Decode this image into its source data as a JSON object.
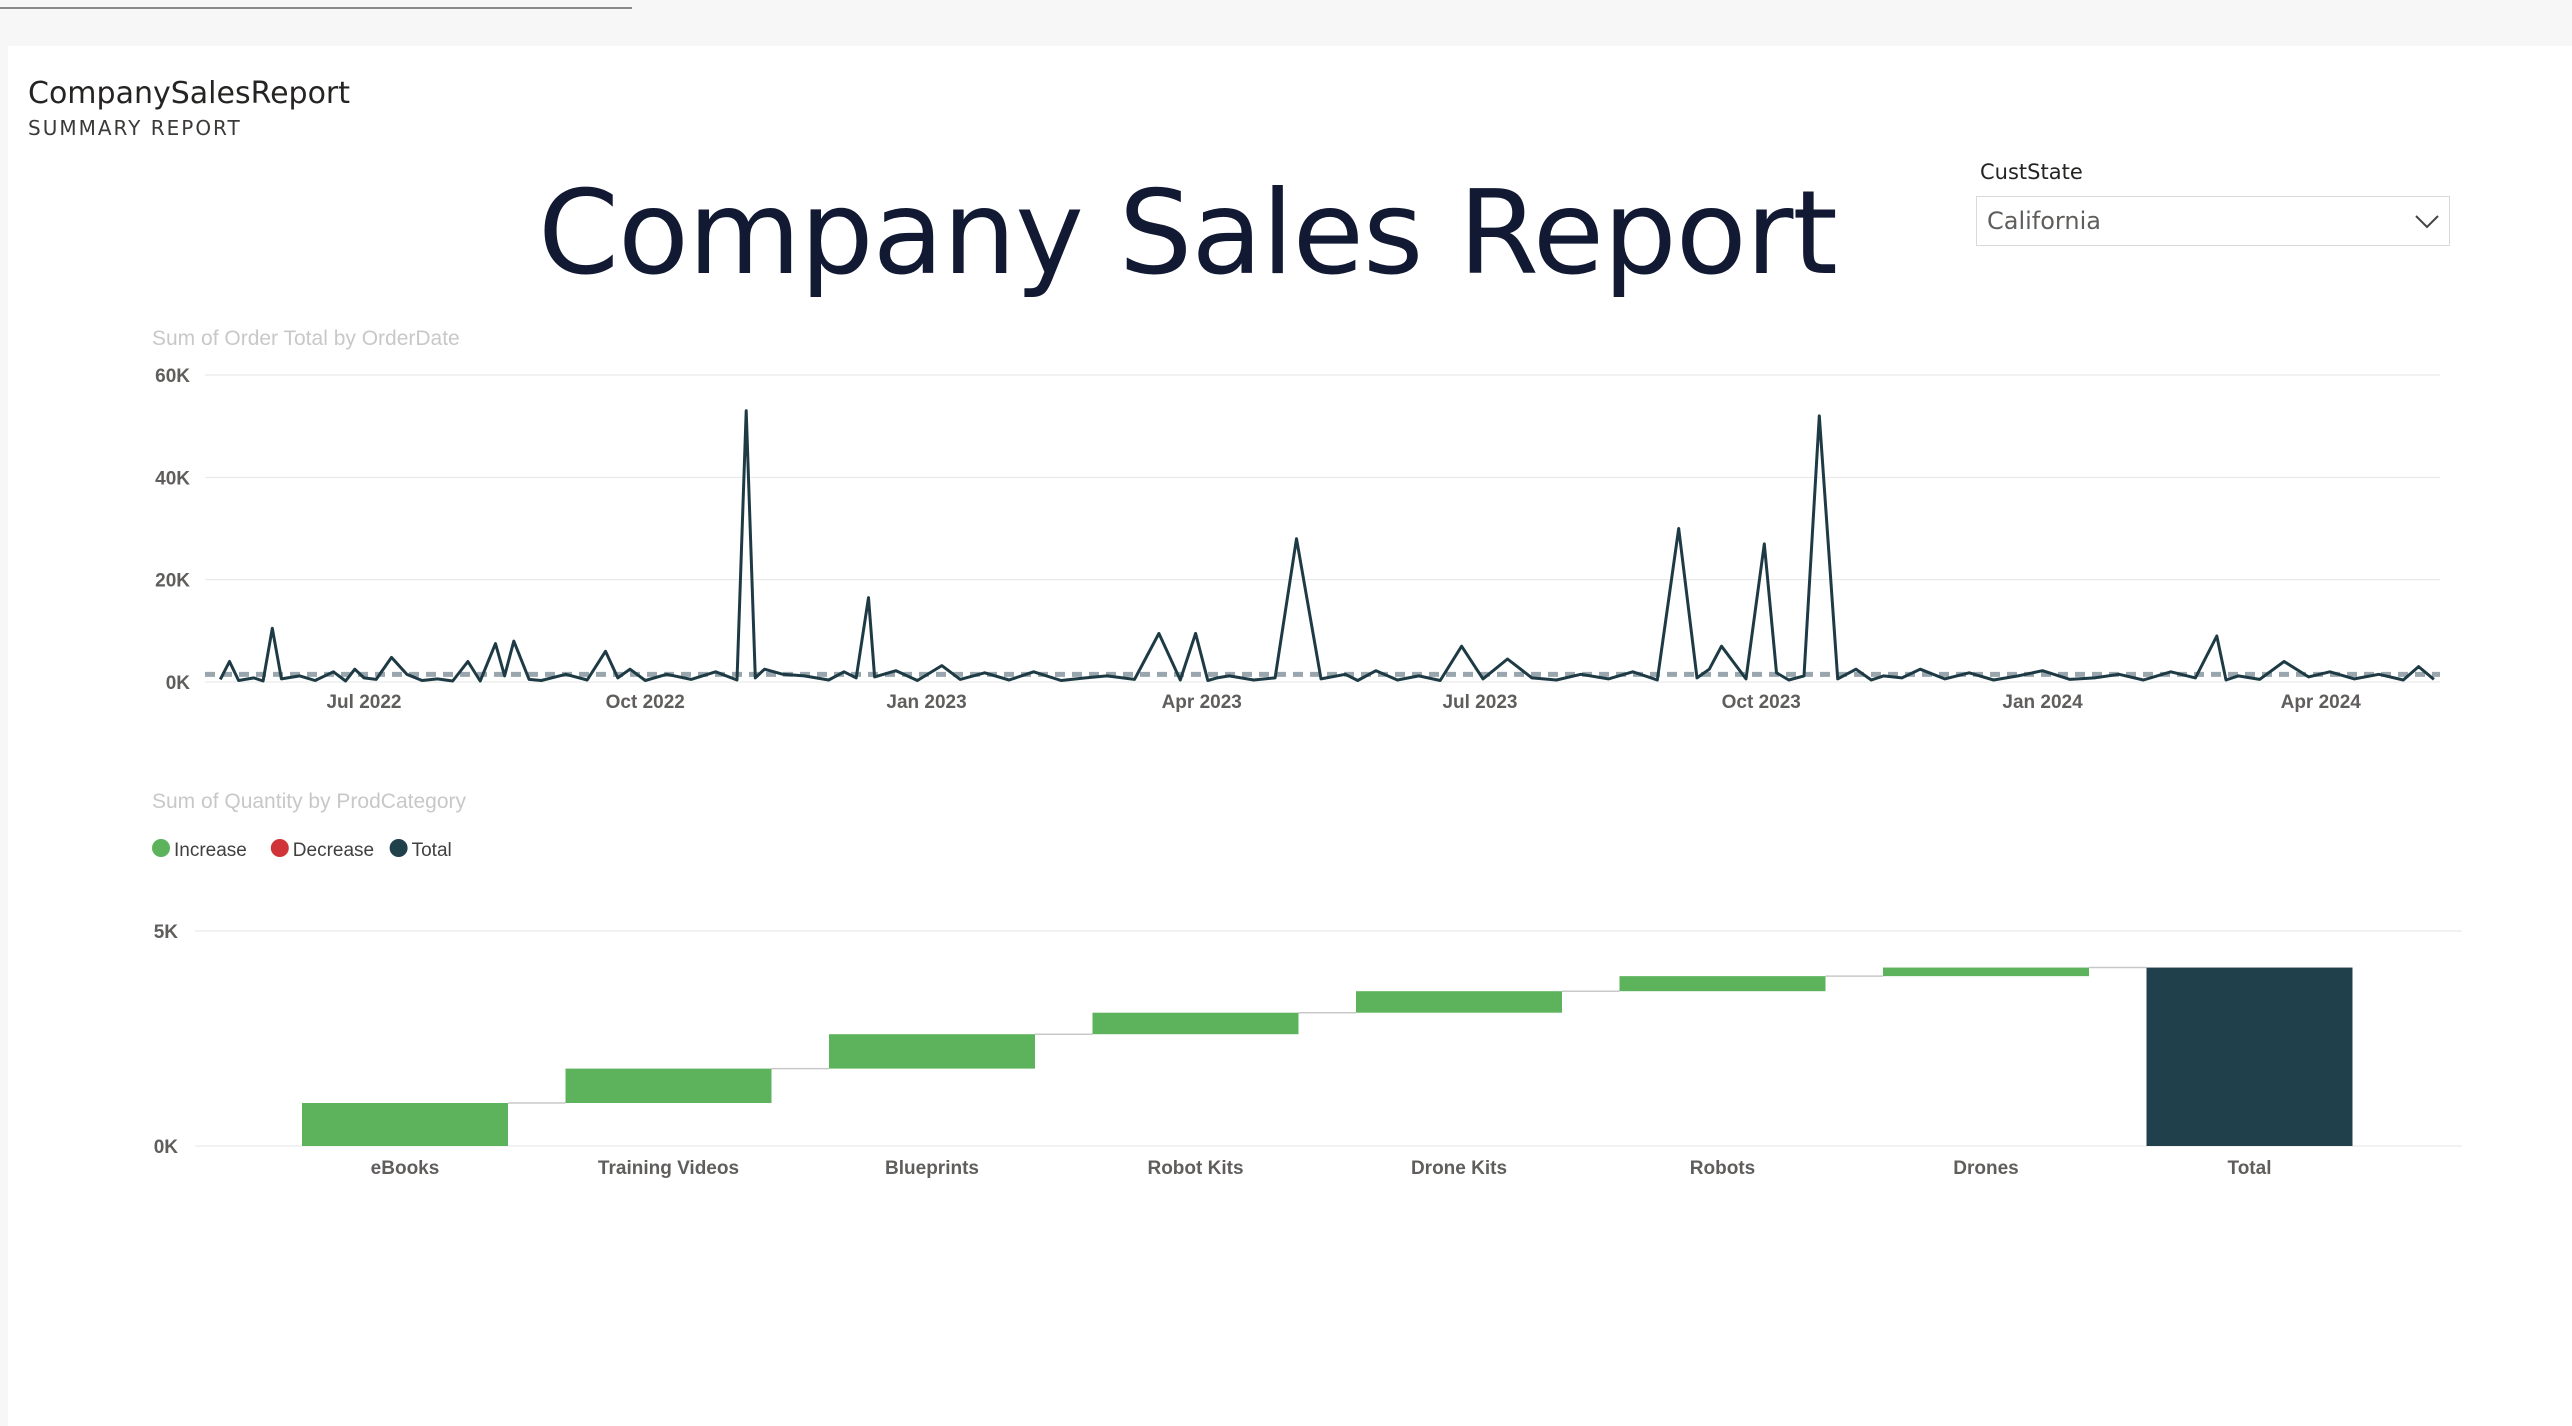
{
  "report": {
    "name": "CompanySalesReport",
    "subtitle": "SUMMARY REPORT",
    "title": "Company Sales Report"
  },
  "slicer": {
    "label": "CustState",
    "value": "California",
    "icon": "chevron-down-icon"
  },
  "colors": {
    "line": "#1e3b45",
    "avg_line": "#9aa6ad",
    "increase": "#5cb35c",
    "decrease": "#d13438",
    "total": "#20404c",
    "grid": "#e6e6e6",
    "title_text": "#121a33"
  },
  "chart_data": [
    {
      "type": "line",
      "title": "Sum of Order Total by OrderDate",
      "xlabel": "",
      "ylabel": "",
      "ylim": [
        0,
        60000
      ],
      "y_ticks": [
        "0K",
        "20K",
        "40K",
        "60K"
      ],
      "x_tick_labels": [
        "Jul 2022",
        "Oct 2022",
        "Jan 2023",
        "Apr 2023",
        "Jul 2023",
        "Oct 2023",
        "Jan 2024",
        "Apr 2024"
      ],
      "x_tick_dates": [
        "2022-07-01",
        "2022-10-01",
        "2023-01-01",
        "2023-04-01",
        "2023-07-01",
        "2023-10-01",
        "2024-01-01",
        "2024-04-01"
      ],
      "x_range": [
        "2022-05-10",
        "2024-05-10"
      ],
      "average_line": 1500,
      "grid": true,
      "series": [
        {
          "x": [
            "2022-05-15",
            "2022-05-18",
            "2022-05-21",
            "2022-05-26",
            "2022-05-29",
            "2022-06-01",
            "2022-06-04",
            "2022-06-10",
            "2022-06-15",
            "2022-06-21",
            "2022-06-25",
            "2022-06-28",
            "2022-07-01",
            "2022-07-05",
            "2022-07-10",
            "2022-07-15",
            "2022-07-20",
            "2022-07-25",
            "2022-07-30",
            "2022-08-04",
            "2022-08-08",
            "2022-08-13",
            "2022-08-16",
            "2022-08-19",
            "2022-08-24",
            "2022-08-28",
            "2022-09-05",
            "2022-09-12",
            "2022-09-18",
            "2022-09-22",
            "2022-09-26",
            "2022-10-01",
            "2022-10-08",
            "2022-10-16",
            "2022-10-24",
            "2022-10-31",
            "2022-11-03",
            "2022-11-06",
            "2022-11-09",
            "2022-11-15",
            "2022-11-22",
            "2022-11-30",
            "2022-12-05",
            "2022-12-09",
            "2022-12-13",
            "2022-12-15",
            "2022-12-22",
            "2022-12-29",
            "2023-01-06",
            "2023-01-12",
            "2023-01-20",
            "2023-01-28",
            "2023-02-05",
            "2023-02-14",
            "2023-02-22",
            "2023-03-01",
            "2023-03-10",
            "2023-03-18",
            "2023-03-25",
            "2023-03-30",
            "2023-04-03",
            "2023-04-06",
            "2023-04-10",
            "2023-04-18",
            "2023-04-25",
            "2023-05-02",
            "2023-05-10",
            "2023-05-18",
            "2023-05-22",
            "2023-05-28",
            "2023-06-04",
            "2023-06-11",
            "2023-06-18",
            "2023-06-25",
            "2023-07-02",
            "2023-07-10",
            "2023-07-18",
            "2023-07-26",
            "2023-08-03",
            "2023-08-12",
            "2023-08-20",
            "2023-08-28",
            "2023-09-04",
            "2023-09-10",
            "2023-09-14",
            "2023-09-18",
            "2023-09-26",
            "2023-10-02",
            "2023-10-06",
            "2023-10-10",
            "2023-10-15",
            "2023-10-20",
            "2023-10-26",
            "2023-11-01",
            "2023-11-06",
            "2023-11-10",
            "2023-11-16",
            "2023-11-22",
            "2023-11-30",
            "2023-12-08",
            "2023-12-16",
            "2023-12-24",
            "2024-01-01",
            "2024-01-10",
            "2024-01-18",
            "2024-01-26",
            "2024-02-03",
            "2024-02-12",
            "2024-02-20",
            "2024-02-27",
            "2024-03-01",
            "2024-03-05",
            "2024-03-12",
            "2024-03-20",
            "2024-03-28",
            "2024-04-04",
            "2024-04-12",
            "2024-04-20",
            "2024-04-28",
            "2024-05-03",
            "2024-05-08"
          ],
          "y": [
            500,
            4000,
            300,
            800,
            200,
            10500,
            600,
            1200,
            300,
            2000,
            200,
            2500,
            800,
            500,
            4800,
            1500,
            300,
            600,
            200,
            4000,
            200,
            7500,
            1200,
            8000,
            500,
            300,
            1500,
            400,
            6000,
            800,
            2500,
            300,
            1500,
            500,
            2000,
            400,
            53000,
            800,
            2500,
            1500,
            1200,
            400,
            2000,
            800,
            16500,
            1000,
            2200,
            300,
            3200,
            500,
            1800,
            400,
            2000,
            300,
            800,
            1200,
            500,
            9500,
            400,
            9500,
            300,
            800,
            1200,
            400,
            800,
            28000,
            600,
            1500,
            300,
            2200,
            400,
            1200,
            300,
            7000,
            600,
            4500,
            800,
            400,
            1500,
            600,
            2000,
            400,
            30000,
            800,
            2500,
            7000,
            600,
            27000,
            1800,
            400,
            1200,
            52000,
            600,
            2500,
            400,
            1200,
            800,
            2500,
            600,
            1800,
            400,
            1200,
            2200,
            500,
            800,
            1500,
            400,
            2000,
            800,
            9000,
            400,
            1200,
            500,
            4000,
            1000,
            2000,
            600,
            1500,
            400,
            3000,
            500
          ]
        }
      ]
    },
    {
      "type": "bar",
      "subtype": "waterfall",
      "title": "Sum of Quantity by ProdCategory",
      "xlabel": "",
      "ylabel": "",
      "ylim": [
        0,
        5000
      ],
      "y_ticks": [
        "0K",
        "5K"
      ],
      "grid": true,
      "legend": {
        "position": "top-left",
        "items": [
          {
            "label": "Increase",
            "color": "#5cb35c"
          },
          {
            "label": "Decrease",
            "color": "#d13438"
          },
          {
            "label": "Total",
            "color": "#20404c"
          }
        ]
      },
      "categories": [
        "eBooks",
        "Training Videos",
        "Blueprints",
        "Robot Kits",
        "Drone Kits",
        "Robots",
        "Drones",
        "Total"
      ],
      "values": [
        1000,
        800,
        800,
        500,
        500,
        350,
        200,
        4150
      ],
      "kinds": [
        "increase",
        "increase",
        "increase",
        "increase",
        "increase",
        "increase",
        "increase",
        "total"
      ]
    }
  ]
}
